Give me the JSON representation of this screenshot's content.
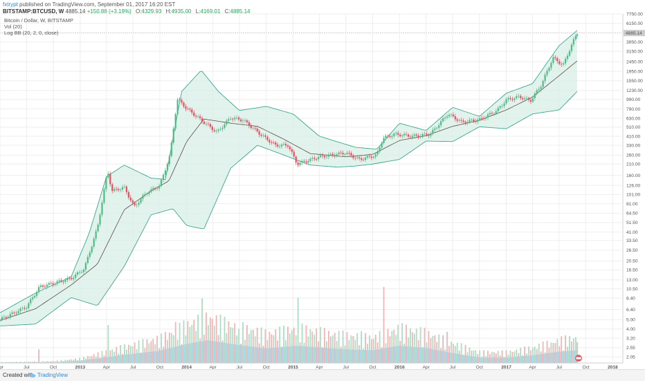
{
  "header": {
    "user": "fxtrypt",
    "published": "published on TradingView.com, September 01, 2017 16:20 EST",
    "symbol": "BITSTAMP:BTCUSD, W",
    "last": "4885.14",
    "change": "+150.88 (+3.19%)",
    "o_label": "O:",
    "o_value": "4329.93",
    "h_label": "H:",
    "h_value": "4935.00",
    "l_label": "L:",
    "l_value": "4169.01",
    "c_label": "C:",
    "c_value": "4885.14"
  },
  "indicators": {
    "title": "Bitcoin / Dollar, W, BITSTAMP",
    "volume": "Vol (20)",
    "bollinger": "Log BB (20, 2, 0, close)"
  },
  "footer": {
    "created": "Created with",
    "brand": "TradingView"
  },
  "chart_data": {
    "type": "candlestick",
    "scale": "log",
    "y_ticks": [
      "7750.00",
      "6150.00",
      "4885.14",
      "3950.00",
      "3150.00",
      "2450.00",
      "1950.00",
      "1550.00",
      "1230.00",
      "990.00",
      "790.00",
      "630.00",
      "510.00",
      "410.00",
      "330.00",
      "260.00",
      "210.00",
      "160.00",
      "126.00",
      "101.00",
      "81.00",
      "64.50",
      "51.50",
      "41.00",
      "33.50",
      "26.50",
      "20.50",
      "16.50",
      "13.00",
      "10.50",
      "8.40",
      "6.40",
      "5.00",
      "4.00",
      "3.20",
      "2.55",
      "2.05"
    ],
    "last_price_label": "4885.14",
    "x_ticks": [
      "Apr",
      "Jul",
      "Oct",
      "2013",
      "Apr",
      "Jul",
      "Oct",
      "2014",
      "Apr",
      "Jul",
      "Oct",
      "2015",
      "Apr",
      "Jul",
      "Oct",
      "2016",
      "Apr",
      "Jul",
      "Oct",
      "2017",
      "Apr",
      "Jul",
      "Oct",
      "2018"
    ],
    "x_range": [
      "2012-04-01",
      "2018-01-31"
    ],
    "ylim": [
      2.05,
      7750
    ],
    "colors": {
      "up": "#53b987",
      "down": "#eb4d5c",
      "bands": "#3aa68f",
      "band_fill": "#d6eee6",
      "basis": "#5a4a42",
      "vol_area": "#8fcdf5",
      "vol_up": "#aedcc4",
      "vol_down": "#f0b5b5"
    },
    "price_anchors": [
      [
        "2012-04-01",
        5.0
      ],
      [
        "2012-07-01",
        6.8
      ],
      [
        "2012-08-15",
        11.0
      ],
      [
        "2012-10-01",
        12.0
      ],
      [
        "2012-12-01",
        13.5
      ],
      [
        "2013-01-15",
        17
      ],
      [
        "2013-03-01",
        45
      ],
      [
        "2013-04-05",
        180
      ],
      [
        "2013-04-20",
        110
      ],
      [
        "2013-06-01",
        120
      ],
      [
        "2013-07-05",
        75
      ],
      [
        "2013-08-15",
        105
      ],
      [
        "2013-10-01",
        125
      ],
      [
        "2013-11-05",
        260
      ],
      [
        "2013-11-30",
        1000
      ],
      [
        "2014-01-01",
        800
      ],
      [
        "2014-02-15",
        620
      ],
      [
        "2014-04-15",
        450
      ],
      [
        "2014-06-01",
        640
      ],
      [
        "2014-07-15",
        600
      ],
      [
        "2014-09-15",
        420
      ],
      [
        "2014-11-01",
        330
      ],
      [
        "2014-12-15",
        330
      ],
      [
        "2015-01-15",
        210
      ],
      [
        "2015-04-01",
        250
      ],
      [
        "2015-07-01",
        275
      ],
      [
        "2015-08-15",
        235
      ],
      [
        "2015-10-15",
        260
      ],
      [
        "2015-11-05",
        390
      ],
      [
        "2015-12-15",
        430
      ],
      [
        "2016-02-15",
        410
      ],
      [
        "2016-04-15",
        430
      ],
      [
        "2016-06-15",
        700
      ],
      [
        "2016-08-01",
        575
      ],
      [
        "2016-10-01",
        610
      ],
      [
        "2016-12-01",
        760
      ],
      [
        "2017-01-01",
        980
      ],
      [
        "2017-02-15",
        1060
      ],
      [
        "2017-03-25",
        960
      ],
      [
        "2017-05-01",
        1400
      ],
      [
        "2017-06-10",
        2700
      ],
      [
        "2017-07-15",
        2250
      ],
      [
        "2017-08-10",
        3500
      ],
      [
        "2017-09-01",
        4885.14
      ]
    ],
    "basis_anchors": [
      [
        "2012-04-01",
        4.9
      ],
      [
        "2012-08-01",
        6.5
      ],
      [
        "2012-12-01",
        11.5
      ],
      [
        "2013-03-01",
        19
      ],
      [
        "2013-06-01",
        70
      ],
      [
        "2013-09-01",
        110
      ],
      [
        "2013-11-01",
        140
      ],
      [
        "2014-01-01",
        360
      ],
      [
        "2014-03-01",
        620
      ],
      [
        "2014-06-01",
        560
      ],
      [
        "2014-09-01",
        520
      ],
      [
        "2014-12-01",
        380
      ],
      [
        "2015-03-01",
        270
      ],
      [
        "2015-07-01",
        250
      ],
      [
        "2015-10-01",
        265
      ],
      [
        "2016-01-01",
        370
      ],
      [
        "2016-04-01",
        415
      ],
      [
        "2016-07-01",
        520
      ],
      [
        "2016-10-01",
        600
      ],
      [
        "2017-01-01",
        770
      ],
      [
        "2017-04-01",
        1050
      ],
      [
        "2017-07-01",
        1750
      ],
      [
        "2017-09-01",
        2500
      ]
    ],
    "upper_anchors": [
      [
        "2012-04-01",
        5.9
      ],
      [
        "2012-08-01",
        9.5
      ],
      [
        "2012-12-01",
        14
      ],
      [
        "2013-02-01",
        40
      ],
      [
        "2013-04-01",
        155
      ],
      [
        "2013-06-01",
        205
      ],
      [
        "2013-09-01",
        150
      ],
      [
        "2013-10-20",
        145
      ],
      [
        "2013-12-15",
        1200
      ],
      [
        "2014-02-20",
        2000
      ],
      [
        "2014-04-20",
        1200
      ],
      [
        "2014-07-01",
        760
      ],
      [
        "2014-10-01",
        840
      ],
      [
        "2015-01-01",
        700
      ],
      [
        "2015-04-01",
        410
      ],
      [
        "2015-08-01",
        315
      ],
      [
        "2015-10-15",
        300
      ],
      [
        "2016-01-01",
        560
      ],
      [
        "2016-04-01",
        470
      ],
      [
        "2016-07-01",
        820
      ],
      [
        "2016-10-01",
        660
      ],
      [
        "2017-01-01",
        1150
      ],
      [
        "2017-04-01",
        1450
      ],
      [
        "2017-07-01",
        3600
      ],
      [
        "2017-09-01",
        5200
      ]
    ],
    "lower_anchors": [
      [
        "2012-04-01",
        4.3
      ],
      [
        "2012-08-01",
        4.5
      ],
      [
        "2012-12-01",
        8.5
      ],
      [
        "2013-03-01",
        7.0
      ],
      [
        "2013-06-01",
        18
      ],
      [
        "2013-09-01",
        62
      ],
      [
        "2013-11-15",
        72
      ],
      [
        "2014-01-01",
        48
      ],
      [
        "2014-03-01",
        44
      ],
      [
        "2014-06-01",
        190
      ],
      [
        "2014-09-01",
        330
      ],
      [
        "2014-12-01",
        260
      ],
      [
        "2015-03-01",
        205
      ],
      [
        "2015-06-01",
        195
      ],
      [
        "2015-08-01",
        200
      ],
      [
        "2015-10-01",
        210
      ],
      [
        "2016-01-01",
        235
      ],
      [
        "2016-04-01",
        365
      ],
      [
        "2016-07-01",
        360
      ],
      [
        "2016-10-01",
        515
      ],
      [
        "2017-01-01",
        490
      ],
      [
        "2017-04-01",
        700
      ],
      [
        "2017-07-01",
        770
      ],
      [
        "2017-09-01",
        1200
      ]
    ],
    "volume_area_anchors": [
      [
        "2012-04-01",
        0.01
      ],
      [
        "2012-10-01",
        0.02
      ],
      [
        "2013-01-01",
        0.05
      ],
      [
        "2013-06-01",
        0.18
      ],
      [
        "2013-10-01",
        0.27
      ],
      [
        "2014-01-01",
        0.42
      ],
      [
        "2014-03-15",
        0.5
      ],
      [
        "2014-06-01",
        0.42
      ],
      [
        "2014-10-01",
        0.32
      ],
      [
        "2015-01-15",
        0.38
      ],
      [
        "2015-06-01",
        0.31
      ],
      [
        "2015-10-01",
        0.28
      ],
      [
        "2016-01-01",
        0.38
      ],
      [
        "2016-04-01",
        0.33
      ],
      [
        "2016-07-01",
        0.22
      ],
      [
        "2016-10-01",
        0.12
      ],
      [
        "2017-01-01",
        0.12
      ],
      [
        "2017-04-01",
        0.17
      ],
      [
        "2017-07-01",
        0.25
      ],
      [
        "2017-09-01",
        0.28
      ]
    ],
    "volume_spikes": [
      [
        "2012-08-15",
        0.18
      ],
      [
        "2013-04-10",
        0.5
      ],
      [
        "2013-11-25",
        0.54
      ],
      [
        "2014-02-20",
        0.85
      ],
      [
        "2014-07-01",
        0.45
      ],
      [
        "2015-01-15",
        0.86
      ],
      [
        "2015-08-20",
        0.42
      ],
      [
        "2015-11-05",
        1.0
      ],
      [
        "2016-06-15",
        0.41
      ],
      [
        "2017-06-01",
        0.27
      ]
    ],
    "volume_scale_max": 1.0
  }
}
